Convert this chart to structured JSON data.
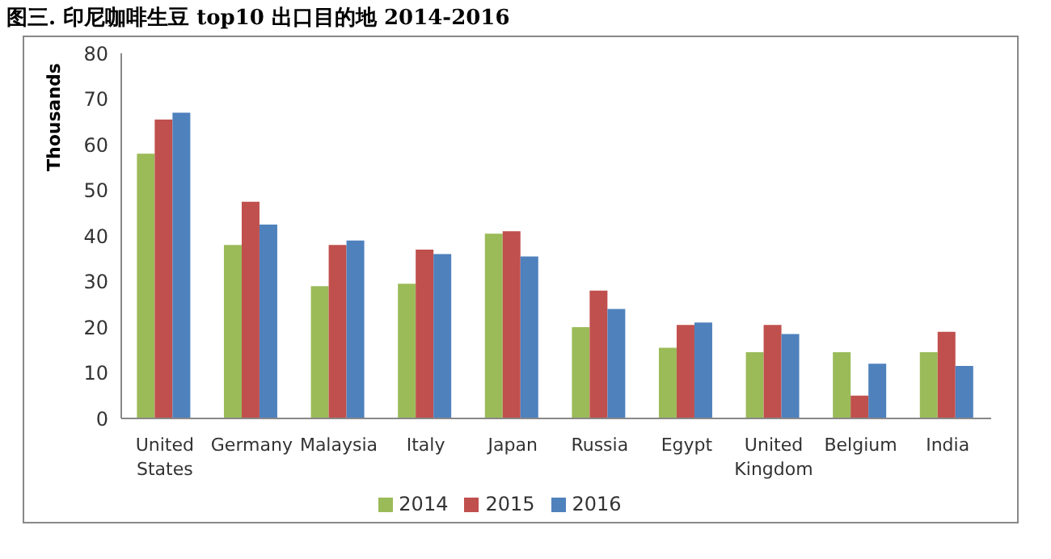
{
  "chart_data": {
    "type": "bar",
    "title": "图三. 印尼咖啡生豆 top10 出口目的地  2014-2016",
    "ylabel": "Thousands",
    "categories": [
      "United States",
      "Germany",
      "Malaysia",
      "Italy",
      "Japan",
      "Russia",
      "Egypt",
      "United Kingdom",
      "Belgium",
      "India"
    ],
    "series": [
      {
        "name": "2014",
        "color": "#9bbb59",
        "values": [
          58,
          38,
          29,
          29.5,
          40.5,
          20,
          15.5,
          14.5,
          14.5,
          14.5
        ]
      },
      {
        "name": "2015",
        "color": "#c0504d",
        "values": [
          65.5,
          47.5,
          38,
          37,
          41,
          28,
          20.5,
          20.5,
          5,
          19
        ]
      },
      {
        "name": "2016",
        "color": "#4f81bd",
        "values": [
          67,
          42.5,
          39,
          36,
          35.5,
          24,
          21,
          18.5,
          12,
          11.5
        ]
      }
    ],
    "ylim": [
      0,
      80
    ],
    "yticks": [
      0,
      10,
      20,
      30,
      40,
      50,
      60,
      70,
      80
    ],
    "grid": false,
    "legend": "bottom"
  }
}
